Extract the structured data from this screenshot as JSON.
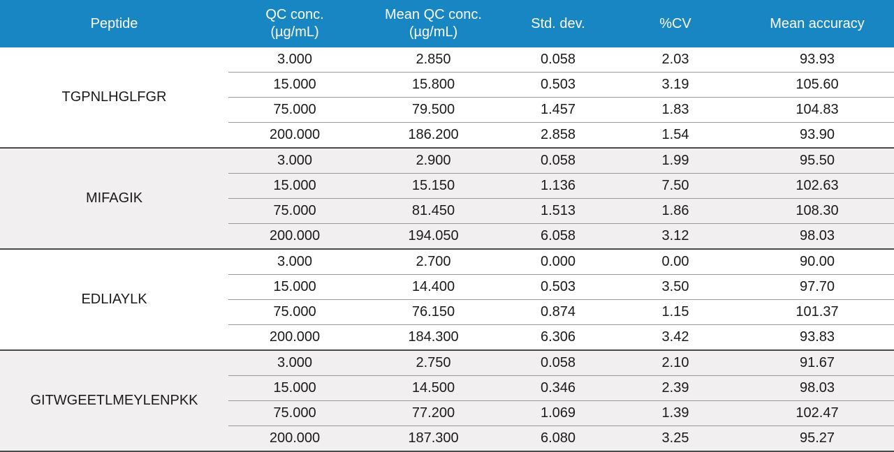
{
  "headers": {
    "peptide": "Peptide",
    "qc_conc_line1": "QC conc.",
    "qc_conc_line2": "(µg/mL)",
    "mean_qc_line1": "Mean QC conc.",
    "mean_qc_line2": "(µg/mL)",
    "std_dev": "Std. dev.",
    "cv": "%CV",
    "mean_accuracy": "Mean accuracy"
  },
  "colors": {
    "header_bg": "#1786c3",
    "header_text": "#ffffff",
    "shaded_group_bg": "#f1efef"
  },
  "groups": [
    {
      "peptide": "TGPNLHGLFGR",
      "rows": [
        {
          "qc": "3.000",
          "mean": "2.850",
          "sd": "0.058",
          "cv": "2.03",
          "acc": "93.93"
        },
        {
          "qc": "15.000",
          "mean": "15.800",
          "sd": "0.503",
          "cv": "3.19",
          "acc": "105.60"
        },
        {
          "qc": "75.000",
          "mean": "79.500",
          "sd": "1.457",
          "cv": "1.83",
          "acc": "104.83"
        },
        {
          "qc": "200.000",
          "mean": "186.200",
          "sd": "2.858",
          "cv": "1.54",
          "acc": "93.90"
        }
      ]
    },
    {
      "peptide": "MIFAGIK",
      "rows": [
        {
          "qc": "3.000",
          "mean": "2.900",
          "sd": "0.058",
          "cv": "1.99",
          "acc": "95.50"
        },
        {
          "qc": "15.000",
          "mean": "15.150",
          "sd": "1.136",
          "cv": "7.50",
          "acc": "102.63"
        },
        {
          "qc": "75.000",
          "mean": "81.450",
          "sd": "1.513",
          "cv": "1.86",
          "acc": "108.30"
        },
        {
          "qc": "200.000",
          "mean": "194.050",
          "sd": "6.058",
          "cv": "3.12",
          "acc": "98.03"
        }
      ]
    },
    {
      "peptide": "EDLIAYLK",
      "rows": [
        {
          "qc": "3.000",
          "mean": "2.700",
          "sd": "0.000",
          "cv": "0.00",
          "acc": "90.00"
        },
        {
          "qc": "15.000",
          "mean": "14.400",
          "sd": "0.503",
          "cv": "3.50",
          "acc": "97.70"
        },
        {
          "qc": "75.000",
          "mean": "76.150",
          "sd": "0.874",
          "cv": "1.15",
          "acc": "101.37"
        },
        {
          "qc": "200.000",
          "mean": "184.300",
          "sd": "6.306",
          "cv": "3.42",
          "acc": "93.83"
        }
      ]
    },
    {
      "peptide": "GITWGEETLMEYLENPKK",
      "rows": [
        {
          "qc": "3.000",
          "mean": "2.750",
          "sd": "0.058",
          "cv": "2.10",
          "acc": "91.67"
        },
        {
          "qc": "15.000",
          "mean": "14.500",
          "sd": "0.346",
          "cv": "2.39",
          "acc": "98.03"
        },
        {
          "qc": "75.000",
          "mean": "77.200",
          "sd": "1.069",
          "cv": "1.39",
          "acc": "102.47"
        },
        {
          "qc": "200.000",
          "mean": "187.300",
          "sd": "6.080",
          "cv": "3.25",
          "acc": "95.27"
        }
      ]
    }
  ]
}
